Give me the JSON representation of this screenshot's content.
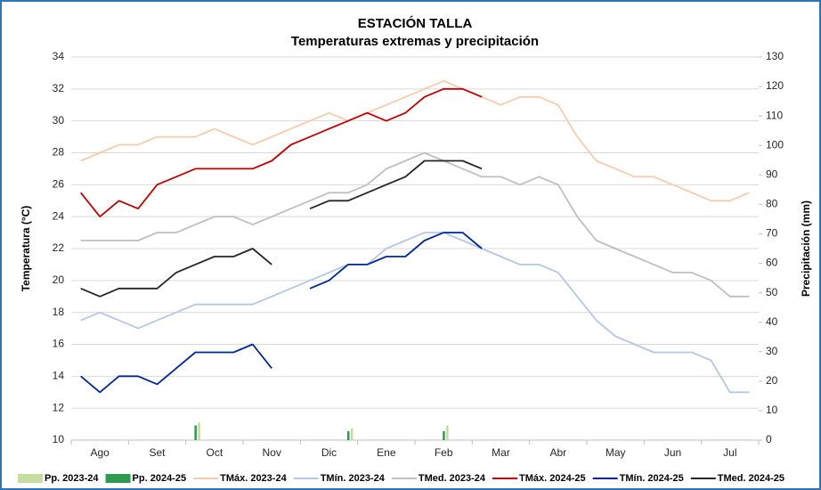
{
  "chart_data": {
    "type": "line",
    "title": "ESTACIÓN TALLA",
    "subtitle": "Temperaturas extremas y precipitación",
    "y_label": "Temperatura (°C)",
    "y2_label": "Precipitación (mm)",
    "categories": [
      null,
      "Ago",
      null,
      null,
      "Set",
      null,
      null,
      "Oct",
      null,
      null,
      "Nov",
      null,
      null,
      "Dic",
      null,
      null,
      "Ene",
      null,
      null,
      "Feb",
      null,
      null,
      "Mar",
      null,
      null,
      "Abr",
      null,
      null,
      "May",
      null,
      null,
      "Jun",
      null,
      null,
      "Jul",
      null
    ],
    "ylim": [
      10,
      34
    ],
    "yticks": [
      10,
      12,
      14,
      16,
      18,
      20,
      22,
      24,
      26,
      28,
      30,
      32,
      34
    ],
    "y2lim": [
      0,
      130
    ],
    "y2ticks": [
      0,
      10,
      20,
      30,
      40,
      50,
      60,
      70,
      80,
      90,
      100,
      110,
      120,
      130
    ],
    "grid": true,
    "legend": "bottom",
    "series": [
      {
        "name": "Pp. 2023-24",
        "type": "bar",
        "axis": "y2",
        "color": "#c5dd9f",
        "values": [
          0,
          0,
          0,
          0,
          0,
          0,
          6,
          0,
          0,
          0,
          0,
          0,
          0,
          0,
          4,
          0,
          0,
          0,
          0,
          5,
          0,
          0,
          0,
          0,
          0,
          0,
          0,
          0,
          0,
          0,
          0,
          0,
          0,
          0,
          0,
          0
        ]
      },
      {
        "name": "Pp. 2024-25",
        "type": "bar",
        "axis": "y2",
        "color": "#2e9a4f",
        "values": [
          0,
          0,
          0,
          0,
          0,
          0,
          5,
          0,
          0,
          0,
          0,
          0,
          0,
          0,
          3,
          0,
          0,
          0,
          0,
          3,
          0,
          0,
          0,
          0,
          0,
          0,
          0,
          0,
          0,
          0,
          0,
          0,
          0,
          0,
          0,
          0
        ]
      },
      {
        "name": "TMáx. 2023-24",
        "type": "line",
        "color": "#f8cbad",
        "values": [
          27.5,
          28,
          28.5,
          28.5,
          29,
          29,
          29,
          29.5,
          29,
          28.5,
          29,
          29.5,
          30,
          30.5,
          30,
          30.5,
          31,
          31.5,
          32,
          32.5,
          32,
          31.5,
          31,
          31.5,
          31.5,
          31,
          29,
          27.5,
          27,
          26.5,
          26.5,
          26,
          25.5,
          25,
          25,
          25.5
        ]
      },
      {
        "name": "TMín. 2023-24",
        "type": "line",
        "color": "#b4c7e7",
        "values": [
          17.5,
          18,
          17.5,
          17,
          17.5,
          18,
          18.5,
          18.5,
          18.5,
          18.5,
          19,
          19.5,
          20,
          20.5,
          21,
          21,
          22,
          22.5,
          23,
          23,
          22.5,
          22,
          21.5,
          21,
          21,
          20.5,
          19,
          17.5,
          16.5,
          16,
          15.5,
          15.5,
          15.5,
          15,
          13,
          13
        ]
      },
      {
        "name": "TMed. 2023-24",
        "type": "line",
        "color": "#bfbfbf",
        "values": [
          22.5,
          22.5,
          22.5,
          22.5,
          23,
          23,
          23.5,
          24,
          24,
          23.5,
          24,
          24.5,
          25,
          25.5,
          25.5,
          26,
          27,
          27.5,
          28,
          27.5,
          27,
          26.5,
          26.5,
          26,
          26.5,
          26,
          24,
          22.5,
          22,
          21.5,
          21,
          20.5,
          20.5,
          20,
          19,
          19
        ]
      },
      {
        "name": "TMáx. 2024-25",
        "type": "line",
        "color": "#c00000",
        "values": [
          25.5,
          24,
          25,
          24.5,
          26,
          26.5,
          27,
          27,
          27,
          27,
          27.5,
          28.5,
          29,
          29.5,
          30,
          30.5,
          30,
          30.5,
          31.5,
          32,
          32,
          31.5,
          null,
          null,
          null,
          null,
          null,
          null,
          null,
          null,
          null,
          null,
          null,
          null,
          null,
          null
        ]
      },
      {
        "name": "TMín. 2024-25",
        "type": "line",
        "color": "#002699",
        "values": [
          14,
          13,
          14,
          14,
          13.5,
          14.5,
          15.5,
          15.5,
          15.5,
          16,
          14.5,
          null,
          19.5,
          20,
          21,
          21,
          21.5,
          21.5,
          22.5,
          23,
          23,
          22,
          null,
          null,
          null,
          null,
          null,
          null,
          null,
          null,
          null,
          null,
          null,
          null,
          null,
          null
        ]
      },
      {
        "name": "TMed. 2024-25",
        "type": "line",
        "color": "#262626",
        "values": [
          19.5,
          19,
          19.5,
          19.5,
          19.5,
          20.5,
          21,
          21.5,
          21.5,
          22,
          21,
          null,
          24.5,
          25,
          25,
          25.5,
          26,
          26.5,
          27.5,
          27.5,
          27.5,
          27,
          null,
          null,
          null,
          null,
          null,
          null,
          null,
          null,
          null,
          null,
          null,
          null,
          null,
          null
        ]
      }
    ]
  }
}
